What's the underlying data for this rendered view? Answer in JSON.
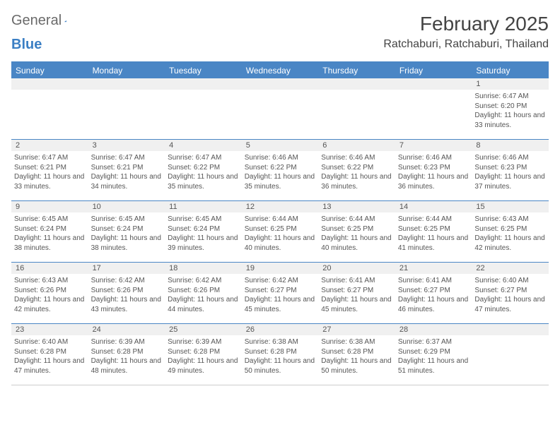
{
  "logo": {
    "text1": "General",
    "text2": "Blue"
  },
  "title": "February 2025",
  "location": "Ratchaburi, Ratchaburi, Thailand",
  "colors": {
    "header_bar": "#4a86c5",
    "daynum_bg": "#f0f0f0",
    "text": "#555555",
    "title_text": "#444444"
  },
  "days": [
    "Sunday",
    "Monday",
    "Tuesday",
    "Wednesday",
    "Thursday",
    "Friday",
    "Saturday"
  ],
  "weeks": [
    {
      "nums": [
        "",
        "",
        "",
        "",
        "",
        "",
        "1"
      ],
      "cells": [
        null,
        null,
        null,
        null,
        null,
        null,
        {
          "sunrise": "6:47 AM",
          "sunset": "6:20 PM",
          "daylight": "11 hours and 33 minutes."
        }
      ]
    },
    {
      "nums": [
        "2",
        "3",
        "4",
        "5",
        "6",
        "7",
        "8"
      ],
      "cells": [
        {
          "sunrise": "6:47 AM",
          "sunset": "6:21 PM",
          "daylight": "11 hours and 33 minutes."
        },
        {
          "sunrise": "6:47 AM",
          "sunset": "6:21 PM",
          "daylight": "11 hours and 34 minutes."
        },
        {
          "sunrise": "6:47 AM",
          "sunset": "6:22 PM",
          "daylight": "11 hours and 35 minutes."
        },
        {
          "sunrise": "6:46 AM",
          "sunset": "6:22 PM",
          "daylight": "11 hours and 35 minutes."
        },
        {
          "sunrise": "6:46 AM",
          "sunset": "6:22 PM",
          "daylight": "11 hours and 36 minutes."
        },
        {
          "sunrise": "6:46 AM",
          "sunset": "6:23 PM",
          "daylight": "11 hours and 36 minutes."
        },
        {
          "sunrise": "6:46 AM",
          "sunset": "6:23 PM",
          "daylight": "11 hours and 37 minutes."
        }
      ]
    },
    {
      "nums": [
        "9",
        "10",
        "11",
        "12",
        "13",
        "14",
        "15"
      ],
      "cells": [
        {
          "sunrise": "6:45 AM",
          "sunset": "6:24 PM",
          "daylight": "11 hours and 38 minutes."
        },
        {
          "sunrise": "6:45 AM",
          "sunset": "6:24 PM",
          "daylight": "11 hours and 38 minutes."
        },
        {
          "sunrise": "6:45 AM",
          "sunset": "6:24 PM",
          "daylight": "11 hours and 39 minutes."
        },
        {
          "sunrise": "6:44 AM",
          "sunset": "6:25 PM",
          "daylight": "11 hours and 40 minutes."
        },
        {
          "sunrise": "6:44 AM",
          "sunset": "6:25 PM",
          "daylight": "11 hours and 40 minutes."
        },
        {
          "sunrise": "6:44 AM",
          "sunset": "6:25 PM",
          "daylight": "11 hours and 41 minutes."
        },
        {
          "sunrise": "6:43 AM",
          "sunset": "6:25 PM",
          "daylight": "11 hours and 42 minutes."
        }
      ]
    },
    {
      "nums": [
        "16",
        "17",
        "18",
        "19",
        "20",
        "21",
        "22"
      ],
      "cells": [
        {
          "sunrise": "6:43 AM",
          "sunset": "6:26 PM",
          "daylight": "11 hours and 42 minutes."
        },
        {
          "sunrise": "6:42 AM",
          "sunset": "6:26 PM",
          "daylight": "11 hours and 43 minutes."
        },
        {
          "sunrise": "6:42 AM",
          "sunset": "6:26 PM",
          "daylight": "11 hours and 44 minutes."
        },
        {
          "sunrise": "6:42 AM",
          "sunset": "6:27 PM",
          "daylight": "11 hours and 45 minutes."
        },
        {
          "sunrise": "6:41 AM",
          "sunset": "6:27 PM",
          "daylight": "11 hours and 45 minutes."
        },
        {
          "sunrise": "6:41 AM",
          "sunset": "6:27 PM",
          "daylight": "11 hours and 46 minutes."
        },
        {
          "sunrise": "6:40 AM",
          "sunset": "6:27 PM",
          "daylight": "11 hours and 47 minutes."
        }
      ]
    },
    {
      "nums": [
        "23",
        "24",
        "25",
        "26",
        "27",
        "28",
        ""
      ],
      "cells": [
        {
          "sunrise": "6:40 AM",
          "sunset": "6:28 PM",
          "daylight": "11 hours and 47 minutes."
        },
        {
          "sunrise": "6:39 AM",
          "sunset": "6:28 PM",
          "daylight": "11 hours and 48 minutes."
        },
        {
          "sunrise": "6:39 AM",
          "sunset": "6:28 PM",
          "daylight": "11 hours and 49 minutes."
        },
        {
          "sunrise": "6:38 AM",
          "sunset": "6:28 PM",
          "daylight": "11 hours and 50 minutes."
        },
        {
          "sunrise": "6:38 AM",
          "sunset": "6:28 PM",
          "daylight": "11 hours and 50 minutes."
        },
        {
          "sunrise": "6:37 AM",
          "sunset": "6:29 PM",
          "daylight": "11 hours and 51 minutes."
        },
        null
      ]
    }
  ]
}
